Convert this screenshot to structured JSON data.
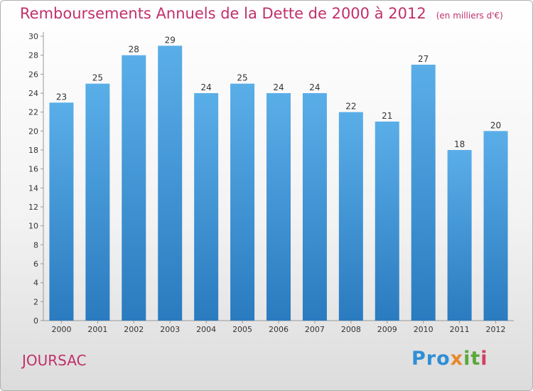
{
  "title": "Remboursements Annuels de la Dette de 2000 à 2012",
  "unit": "(en milliers d'€)",
  "town": "JOURSAC",
  "logo": "Proxiti",
  "colors": {
    "accent": "#c0306a",
    "bar_light": "#5aaee8",
    "bar_dark": "#2a7bbf"
  },
  "chart_data": {
    "type": "bar",
    "title": "Remboursements Annuels de la Dette de 2000 à 2012",
    "categories": [
      "2000",
      "2001",
      "2002",
      "2003",
      "2004",
      "2005",
      "2006",
      "2007",
      "2008",
      "2009",
      "2010",
      "2011",
      "2012"
    ],
    "values": [
      23,
      25,
      28,
      29,
      24,
      25,
      24,
      24,
      22,
      21,
      27,
      18,
      20
    ],
    "ylim": [
      0,
      30
    ],
    "yticks": [
      0,
      2,
      4,
      6,
      8,
      10,
      12,
      14,
      16,
      18,
      20,
      22,
      24,
      26,
      28,
      30
    ],
    "grid": false,
    "data_labels": true
  }
}
